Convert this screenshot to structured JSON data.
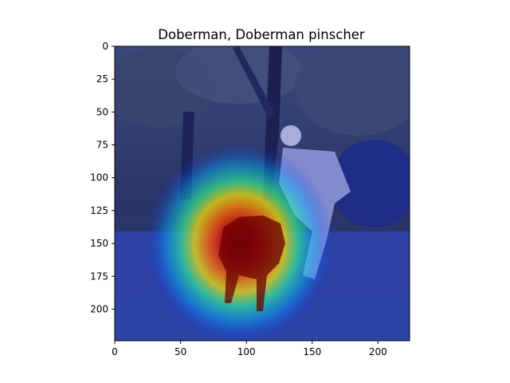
{
  "chart_data": {
    "type": "heatmap",
    "title": "Doberman, Doberman pinscher",
    "xlabel": "",
    "ylabel": "",
    "xlim": [
      0,
      224
    ],
    "ylim": [
      224,
      0
    ],
    "x_ticks": [
      0,
      50,
      100,
      150,
      200
    ],
    "y_ticks": [
      0,
      25,
      50,
      75,
      100,
      125,
      150,
      175,
      200
    ],
    "x_tick_labels": [
      "0",
      "50",
      "100",
      "150",
      "200"
    ],
    "y_tick_labels": [
      "0",
      "25",
      "50",
      "75",
      "100",
      "125",
      "150",
      "175",
      "200"
    ],
    "colormap": "jet",
    "overlay": "Grad-CAM heatmap over photo of a Doberman with a man in a park",
    "hotspot_center": [
      95,
      150
    ],
    "hotspot_radius": [
      45,
      55
    ],
    "grid": false
  }
}
